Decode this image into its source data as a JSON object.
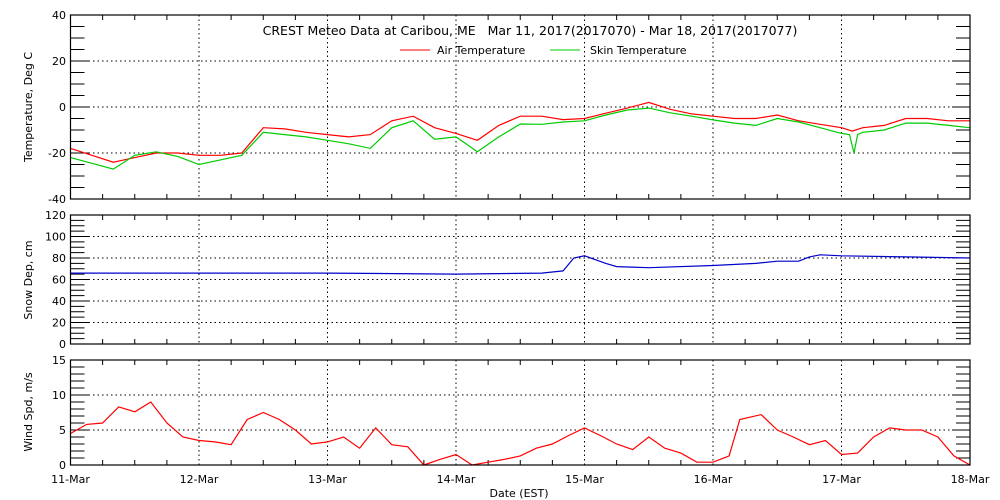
{
  "chart_data": [
    {
      "type": "line",
      "title": "CREST Meteo Data at Caribou, ME   Mar 11, 2017(2017070) - Mar 18, 2017(2017077)",
      "ylabel": "Temperature, Deg C",
      "ylim": [
        -40,
        40
      ],
      "yticks": [
        -40,
        -20,
        0,
        20,
        40
      ],
      "grid": true,
      "legend_position": "top-center",
      "series": [
        {
          "name": "Air Temperature",
          "color": "#ff0000",
          "points": [
            [
              "Mar 11 00:00",
              -18
            ],
            [
              "Mar 11 04:00",
              -21
            ],
            [
              "Mar 11 08:00",
              -24
            ],
            [
              "Mar 11 12:00",
              -22
            ],
            [
              "Mar 11 16:00",
              -20
            ],
            [
              "Mar 11 20:00",
              -20
            ],
            [
              "Mar 12 00:00",
              -21
            ],
            [
              "Mar 12 04:00",
              -21
            ],
            [
              "Mar 12 08:00",
              -20
            ],
            [
              "Mar 12 12:00",
              -9
            ],
            [
              "Mar 12 16:00",
              -9.5
            ],
            [
              "Mar 12 20:00",
              -11
            ],
            [
              "Mar 13 00:00",
              -12
            ],
            [
              "Mar 13 04:00",
              -13
            ],
            [
              "Mar 13 08:00",
              -12
            ],
            [
              "Mar 13 12:00",
              -6
            ],
            [
              "Mar 13 16:00",
              -4
            ],
            [
              "Mar 13 20:00",
              -9
            ],
            [
              "Mar 14 00:00",
              -11.5
            ],
            [
              "Mar 14 04:00",
              -14.5
            ],
            [
              "Mar 14 08:00",
              -8
            ],
            [
              "Mar 14 12:00",
              -4
            ],
            [
              "Mar 14 16:00",
              -4
            ],
            [
              "Mar 14 20:00",
              -5.5
            ],
            [
              "Mar 15 00:00",
              -5
            ],
            [
              "Mar 15 04:00",
              -2.7
            ],
            [
              "Mar 15 08:00",
              -0.5
            ],
            [
              "Mar 15 12:00",
              2
            ],
            [
              "Mar 15 16:00",
              -1
            ],
            [
              "Mar 15 20:00",
              -3
            ],
            [
              "Mar 16 00:00",
              -4
            ],
            [
              "Mar 16 04:00",
              -5
            ],
            [
              "Mar 16 08:00",
              -5
            ],
            [
              "Mar 16 12:00",
              -3.5
            ],
            [
              "Mar 16 16:00",
              -6
            ],
            [
              "Mar 16 20:00",
              -7.5
            ],
            [
              "Mar 17 00:00",
              -9
            ],
            [
              "Mar 17 02:00",
              -10.5
            ],
            [
              "Mar 17 04:00",
              -9
            ],
            [
              "Mar 17 08:00",
              -8
            ],
            [
              "Mar 17 12:00",
              -5
            ],
            [
              "Mar 17 16:00",
              -5
            ],
            [
              "Mar 17 20:00",
              -6
            ],
            [
              "Mar 18 00:00",
              -6
            ]
          ]
        },
        {
          "name": "Skin Temperature",
          "color": "#00cc00",
          "points": [
            [
              "Mar 11 00:00",
              -22
            ],
            [
              "Mar 11 04:00",
              -24.5
            ],
            [
              "Mar 11 08:00",
              -27
            ],
            [
              "Mar 11 12:00",
              -21
            ],
            [
              "Mar 11 16:00",
              -19.5
            ],
            [
              "Mar 11 20:00",
              -21.5
            ],
            [
              "Mar 12 00:00",
              -25
            ],
            [
              "Mar 12 04:00",
              -23
            ],
            [
              "Mar 12 08:00",
              -21
            ],
            [
              "Mar 12 12:00",
              -11
            ],
            [
              "Mar 12 16:00",
              -12
            ],
            [
              "Mar 12 20:00",
              -13
            ],
            [
              "Mar 13 00:00",
              -14.5
            ],
            [
              "Mar 13 04:00",
              -16
            ],
            [
              "Mar 13 08:00",
              -18
            ],
            [
              "Mar 13 12:00",
              -9
            ],
            [
              "Mar 13 16:00",
              -6
            ],
            [
              "Mar 13 20:00",
              -14
            ],
            [
              "Mar 14 00:00",
              -13
            ],
            [
              "Mar 14 04:00",
              -19.5
            ],
            [
              "Mar 14 08:00",
              -13
            ],
            [
              "Mar 14 12:00",
              -7.4
            ],
            [
              "Mar 14 16:00",
              -7.5
            ],
            [
              "Mar 14 20:00",
              -6.5
            ],
            [
              "Mar 15 00:00",
              -6
            ],
            [
              "Mar 15 04:00",
              -3.5
            ],
            [
              "Mar 15 08:00",
              -1.3
            ],
            [
              "Mar 15 12:00",
              -0.5
            ],
            [
              "Mar 15 16:00",
              -2.5
            ],
            [
              "Mar 15 20:00",
              -4
            ],
            [
              "Mar 16 00:00",
              -5.6
            ],
            [
              "Mar 16 04:00",
              -7
            ],
            [
              "Mar 16 08:00",
              -8
            ],
            [
              "Mar 16 12:00",
              -5
            ],
            [
              "Mar 16 16:00",
              -6.5
            ],
            [
              "Mar 16 20:00",
              -9
            ],
            [
              "Mar 17 00:00",
              -11.5
            ],
            [
              "Mar 17 01:30",
              -12
            ],
            [
              "Mar 17 02:20",
              -20
            ],
            [
              "Mar 17 03:00",
              -12
            ],
            [
              "Mar 17 04:00",
              -11
            ],
            [
              "Mar 17 08:00",
              -10
            ],
            [
              "Mar 17 12:00",
              -7
            ],
            [
              "Mar 17 16:00",
              -7
            ],
            [
              "Mar 17 20:00",
              -8
            ],
            [
              "Mar 18 00:00",
              -9
            ]
          ]
        }
      ]
    },
    {
      "type": "line",
      "ylabel": "Snow Dep, cm",
      "ylim": [
        0,
        120
      ],
      "yticks": [
        0,
        20,
        40,
        60,
        80,
        100,
        120
      ],
      "grid": true,
      "series": [
        {
          "color": "#0000cc",
          "points": [
            [
              "Mar 11 00:00",
              66
            ],
            [
              "Mar 12 00:00",
              66
            ],
            [
              "Mar 13 00:00",
              66
            ],
            [
              "Mar 14 00:00",
              65
            ],
            [
              "Mar 14 16:00",
              66
            ],
            [
              "Mar 14 20:00",
              68
            ],
            [
              "Mar 14 22:00",
              80
            ],
            [
              "Mar 15 00:00",
              82
            ],
            [
              "Mar 15 04:00",
              75
            ],
            [
              "Mar 15 06:00",
              72
            ],
            [
              "Mar 15 12:00",
              71
            ],
            [
              "Mar 16 00:00",
              73
            ],
            [
              "Mar 16 08:00",
              75
            ],
            [
              "Mar 16 12:00",
              77
            ],
            [
              "Mar 16 16:00",
              77
            ],
            [
              "Mar 16 18:00",
              81
            ],
            [
              "Mar 16 20:00",
              83
            ],
            [
              "Mar 17 00:00",
              82
            ],
            [
              "Mar 17 12:00",
              81
            ],
            [
              "Mar 18 00:00",
              80
            ]
          ]
        }
      ]
    },
    {
      "type": "line",
      "ylabel": "Wind Spd, m/s",
      "xlabel": "Date (EST)",
      "ylim": [
        0,
        15
      ],
      "yticks": [
        0,
        5,
        10,
        15
      ],
      "xticks": [
        "11-Mar",
        "12-Mar",
        "13-Mar",
        "14-Mar",
        "15-Mar",
        "16-Mar",
        "17-Mar",
        "18-Mar"
      ],
      "grid": true,
      "series": [
        {
          "color": "#ff0000",
          "points": [
            [
              "Mar 11 00:00",
              4.5
            ],
            [
              "Mar 11 03:00",
              5.8
            ],
            [
              "Mar 11 06:00",
              6
            ],
            [
              "Mar 11 09:00",
              8.3
            ],
            [
              "Mar 11 12:00",
              7.6
            ],
            [
              "Mar 11 15:00",
              9
            ],
            [
              "Mar 11 18:00",
              6
            ],
            [
              "Mar 11 21:00",
              4
            ],
            [
              "Mar 12 00:00",
              3.5
            ],
            [
              "Mar 12 03:00",
              3.3
            ],
            [
              "Mar 12 06:00",
              2.9
            ],
            [
              "Mar 12 09:00",
              6.5
            ],
            [
              "Mar 12 12:00",
              7.5
            ],
            [
              "Mar 12 15:00",
              6.5
            ],
            [
              "Mar 12 18:00",
              5
            ],
            [
              "Mar 12 21:00",
              3
            ],
            [
              "Mar 13 00:00",
              3.3
            ],
            [
              "Mar 13 03:00",
              4
            ],
            [
              "Mar 13 06:00",
              2.4
            ],
            [
              "Mar 13 09:00",
              5.3
            ],
            [
              "Mar 13 12:00",
              2.9
            ],
            [
              "Mar 13 15:00",
              2.6
            ],
            [
              "Mar 13 18:00",
              0
            ],
            [
              "Mar 13 21:00",
              0.8
            ],
            [
              "Mar 14 00:00",
              1.5
            ],
            [
              "Mar 14 03:00",
              0
            ],
            [
              "Mar 14 06:00",
              0.4
            ],
            [
              "Mar 14 09:00",
              0.8
            ],
            [
              "Mar 14 12:00",
              1.3
            ],
            [
              "Mar 14 15:00",
              2.4
            ],
            [
              "Mar 14 18:00",
              3
            ],
            [
              "Mar 14 21:00",
              4.2
            ],
            [
              "Mar 15 00:00",
              5.3
            ],
            [
              "Mar 15 03:00",
              4.2
            ],
            [
              "Mar 15 06:00",
              3
            ],
            [
              "Mar 15 09:00",
              2.2
            ],
            [
              "Mar 15 12:00",
              4
            ],
            [
              "Mar 15 15:00",
              2.4
            ],
            [
              "Mar 15 18:00",
              1.7
            ],
            [
              "Mar 15 21:00",
              0.4
            ],
            [
              "Mar 16 00:00",
              0.4
            ],
            [
              "Mar 16 03:00",
              1.3
            ],
            [
              "Mar 16 05:00",
              6.5
            ],
            [
              "Mar 16 09:00",
              7.2
            ],
            [
              "Mar 16 12:00",
              5
            ],
            [
              "Mar 16 15:00",
              4
            ],
            [
              "Mar 16 18:00",
              2.9
            ],
            [
              "Mar 16 21:00",
              3.5
            ],
            [
              "Mar 17 00:00",
              1.5
            ],
            [
              "Mar 17 03:00",
              1.7
            ],
            [
              "Mar 17 06:00",
              4
            ],
            [
              "Mar 17 09:00",
              5.3
            ],
            [
              "Mar 17 12:00",
              5
            ],
            [
              "Mar 17 15:00",
              5
            ],
            [
              "Mar 17 18:00",
              4
            ],
            [
              "Mar 17 21:00",
              1.3
            ],
            [
              "Mar 18 00:00",
              0
            ]
          ]
        }
      ]
    }
  ]
}
